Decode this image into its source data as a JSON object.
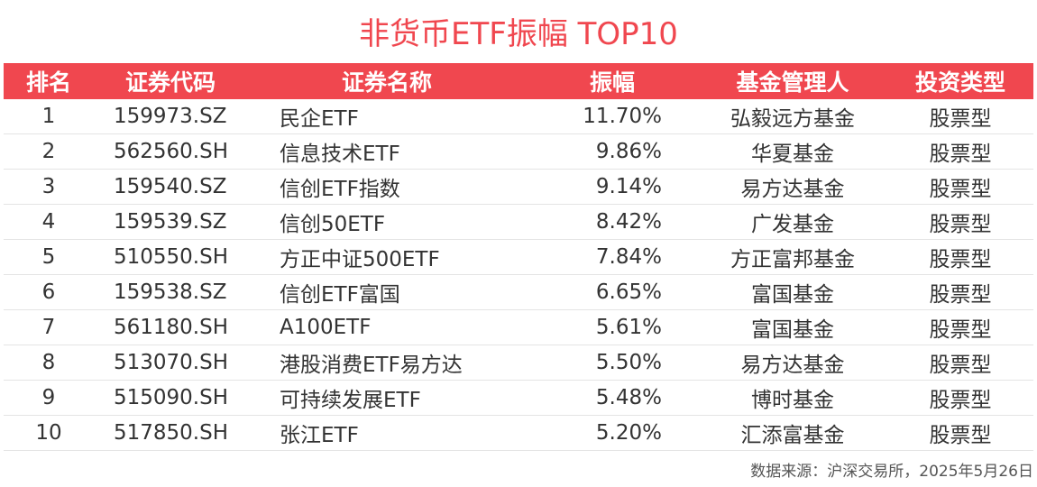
{
  "title": "非货币ETF振幅 TOP10",
  "headers": {
    "rank": "排名",
    "code": "证券代码",
    "name": "证券名称",
    "amplitude": "振幅",
    "manager": "基金管理人",
    "type": "投资类型"
  },
  "rows": [
    {
      "rank": "1",
      "code": "159973.SZ",
      "name": "民企ETF",
      "amplitude": "11.70%",
      "manager": "弘毅远方基金",
      "type": "股票型"
    },
    {
      "rank": "2",
      "code": "562560.SH",
      "name": "信息技术ETF",
      "amplitude": "9.86%",
      "manager": "华夏基金",
      "type": "股票型"
    },
    {
      "rank": "3",
      "code": "159540.SZ",
      "name": "信创ETF指数",
      "amplitude": "9.14%",
      "manager": "易方达基金",
      "type": "股票型"
    },
    {
      "rank": "4",
      "code": "159539.SZ",
      "name": "信创50ETF",
      "amplitude": "8.42%",
      "manager": "广发基金",
      "type": "股票型"
    },
    {
      "rank": "5",
      "code": "510550.SH",
      "name": "方正中证500ETF",
      "amplitude": "7.84%",
      "manager": "方正富邦基金",
      "type": "股票型"
    },
    {
      "rank": "6",
      "code": "159538.SZ",
      "name": "信创ETF富国",
      "amplitude": "6.65%",
      "manager": "富国基金",
      "type": "股票型"
    },
    {
      "rank": "7",
      "code": "561180.SH",
      "name": "A100ETF",
      "amplitude": "5.61%",
      "manager": "富国基金",
      "type": "股票型"
    },
    {
      "rank": "8",
      "code": "513070.SH",
      "name": "港股消费ETF易方达",
      "amplitude": "5.50%",
      "manager": "易方达基金",
      "type": "股票型"
    },
    {
      "rank": "9",
      "code": "515090.SH",
      "name": "可持续发展ETF",
      "amplitude": "5.48%",
      "manager": "博时基金",
      "type": "股票型"
    },
    {
      "rank": "10",
      "code": "517850.SH",
      "name": "张江ETF",
      "amplitude": "5.20%",
      "manager": "汇添富基金",
      "type": "股票型"
    }
  ],
  "source": "数据来源：沪深交易所，2025年5月26日",
  "colors": {
    "accent": "#f0474f",
    "header_text": "#ffffff",
    "body_text": "#333333"
  }
}
